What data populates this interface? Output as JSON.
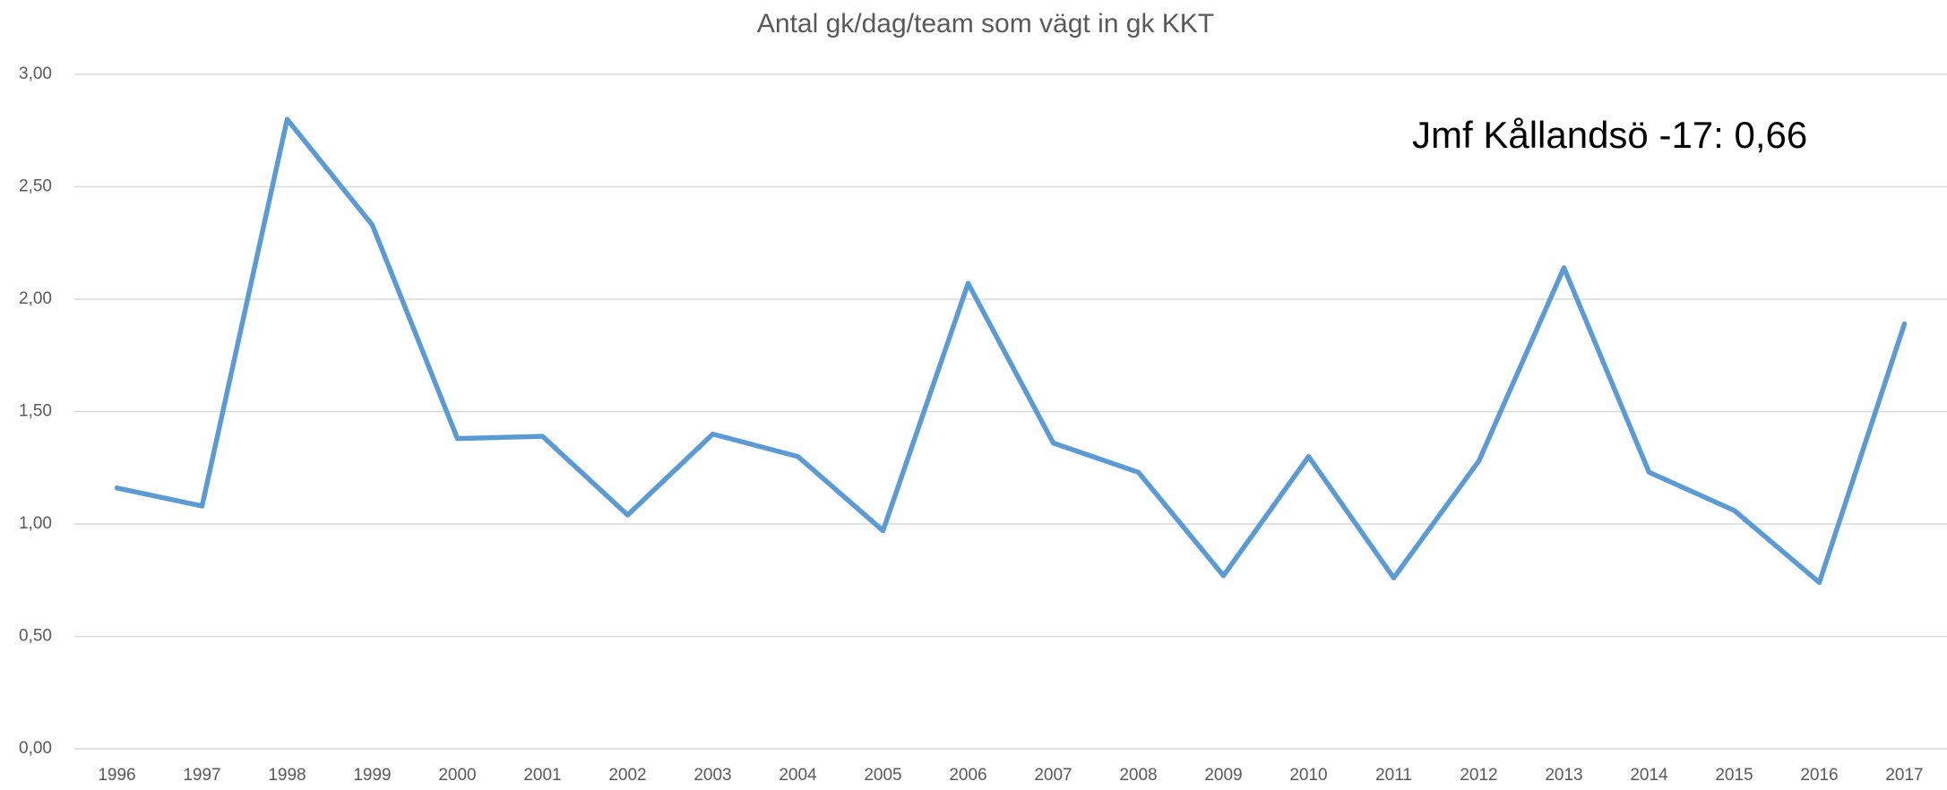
{
  "chart_data": {
    "type": "line",
    "title": "Antal gk/dag/team som vägt in gk KKT",
    "annotation": "Jmf Kållandsö -17: 0,66",
    "categories": [
      "1996",
      "1997",
      "1998",
      "1999",
      "2000",
      "2001",
      "2002",
      "2003",
      "2004",
      "2005",
      "2006",
      "2007",
      "2008",
      "2009",
      "2010",
      "2011",
      "2012",
      "2013",
      "2014",
      "2015",
      "2016",
      "2017"
    ],
    "values": [
      1.16,
      1.08,
      2.8,
      2.33,
      1.38,
      1.39,
      1.04,
      1.4,
      1.3,
      0.97,
      2.07,
      1.36,
      1.23,
      0.77,
      1.3,
      0.76,
      1.28,
      2.14,
      1.23,
      1.06,
      0.74,
      1.89
    ],
    "color": "#5b9bd5",
    "ylim": [
      0,
      3
    ],
    "yticks": [
      {
        "value": 0,
        "label": "0,00"
      },
      {
        "value": 0.5,
        "label": "0,50"
      },
      {
        "value": 1,
        "label": "1,00"
      },
      {
        "value": 1.5,
        "label": "1,50"
      },
      {
        "value": 2,
        "label": "2,00"
      },
      {
        "value": 2.5,
        "label": "2,50"
      },
      {
        "value": 3,
        "label": "3,00"
      }
    ],
    "grid": true
  }
}
